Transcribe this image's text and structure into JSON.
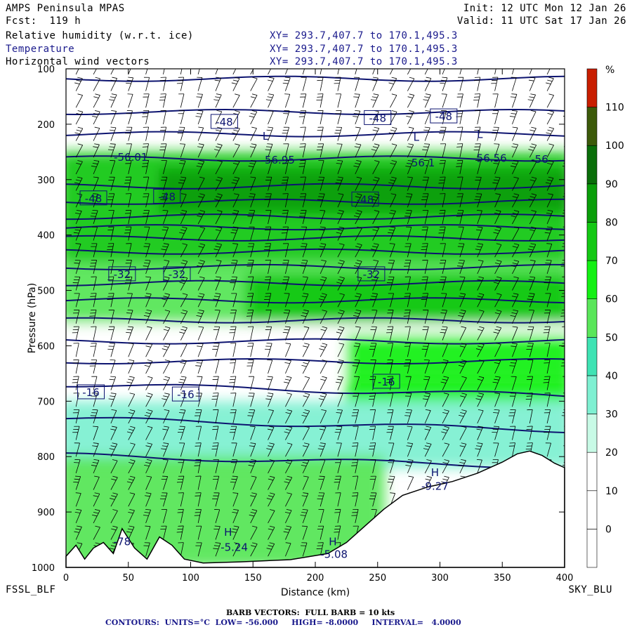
{
  "header": {
    "model": "AMPS Peninsula MPAS",
    "forecast": "Fcst:  119 h",
    "init": "Init: 12 UTC Mon 12 Jan 26",
    "valid": "Valid: 11 UTC Sat 17 Jan 26",
    "field1": "Relative humidity (w.r.t. ice)",
    "field2": "Temperature",
    "field3": "Horizontal wind vectors",
    "xy1": "XY= 293.7,407.7 to 170.1,495.3",
    "xy2": "XY= 293.7,407.7 to 170.1,495.3",
    "xy3": "XY= 293.7,407.7 to 170.1,495.3"
  },
  "footer": {
    "left_station": "FSSL_BLF",
    "right_station": "SKY_BLU",
    "barb_note": "BARB VECTORS:  FULL BARB = 10 kts",
    "contours": "CONTOURS:  UNITS=°C  LOW= -56.000     HIGH= -8.0000     INTERVAL=   4.0000"
  },
  "colors": {
    "contour": "#0d1470",
    "barb": "#000000",
    "terrain": "#ffffff"
  },
  "chart_data": {
    "type": "heatmap",
    "xlabel": "Distance (km)",
    "ylabel": "Pressure (hPa)",
    "xlim": [
      0,
      400
    ],
    "ylim": [
      1000,
      100
    ],
    "x_ticks": [
      0,
      50,
      100,
      150,
      200,
      250,
      300,
      350,
      400
    ],
    "y_ticks": [
      100,
      200,
      300,
      400,
      500,
      600,
      700,
      800,
      900,
      1000
    ],
    "colorbar": {
      "unit": "%",
      "bounds": [
        0,
        10,
        20,
        30,
        40,
        50,
        60,
        70,
        80,
        90,
        100,
        110,
        120
      ],
      "labels": [
        "0",
        "10",
        "20",
        "30",
        "40",
        "50",
        "60",
        "70",
        "80",
        "90",
        "100",
        "110"
      ],
      "colors": [
        "#ffffff",
        "#ffffff",
        "#ffffff",
        "#c8fae6",
        "#7ff0d2",
        "#3fe3b4",
        "#5ae65a",
        "#14f014",
        "#14c814",
        "#0a9e0a",
        "#0a6e0a",
        "#3c5a0a",
        "#c81e00"
      ]
    },
    "rh_layers": [
      {
        "p_top": 250,
        "p_bot": 450,
        "x0": 0,
        "x1": 400,
        "rh": 80
      },
      {
        "p_top": 280,
        "p_bot": 360,
        "x0": 80,
        "x1": 400,
        "rh": 92
      },
      {
        "p_top": 450,
        "p_bot": 560,
        "x0": 0,
        "x1": 400,
        "rh": 65
      },
      {
        "p_top": 470,
        "p_bot": 560,
        "x0": 150,
        "x1": 400,
        "rh": 85
      },
      {
        "p_top": 560,
        "p_bot": 660,
        "x0": 0,
        "x1": 400,
        "rh": 22
      },
      {
        "p_top": 580,
        "p_bot": 700,
        "x0": 230,
        "x1": 400,
        "rh": 75
      },
      {
        "p_top": 700,
        "p_bot": 820,
        "x0": 0,
        "x1": 400,
        "rh": 45
      },
      {
        "p_top": 800,
        "p_bot": 1000,
        "x0": 0,
        "x1": 250,
        "rh": 68
      }
    ],
    "temperature_labels": [
      {
        "text": "-48",
        "x": 127,
        "p": 195
      },
      {
        "text": "-48",
        "x": 250,
        "p": 188
      },
      {
        "text": "-48",
        "x": 303,
        "p": 185
      },
      {
        "text": "-48",
        "x": 22,
        "p": 333
      },
      {
        "text": "-48",
        "x": 81,
        "p": 330
      },
      {
        "text": "-48",
        "x": 240,
        "p": 335
      },
      {
        "text": "-32",
        "x": 45,
        "p": 470
      },
      {
        "text": "-32",
        "x": 89,
        "p": 470
      },
      {
        "text": "-32",
        "x": 245,
        "p": 470
      },
      {
        "text": "-16",
        "x": 20,
        "p": 683
      },
      {
        "text": "-16",
        "x": 96,
        "p": 687
      },
      {
        "text": "-16",
        "x": 257,
        "p": 664
      }
    ],
    "extrema_labels": [
      {
        "text": "-56.01",
        "x": 52,
        "p": 266
      },
      {
        "text": "-56.95",
        "x": 170,
        "p": 271
      },
      {
        "text": "-56.1",
        "x": 285,
        "p": 276
      },
      {
        "text": "-56.56",
        "x": 340,
        "p": 268
      },
      {
        "text": "-56",
        "x": 380,
        "p": 270
      },
      {
        "text": "L",
        "x": 160,
        "p": 228
      },
      {
        "text": "L",
        "x": 281,
        "p": 230
      },
      {
        "text": "L",
        "x": 332,
        "p": 225
      },
      {
        "text": "H",
        "x": 296,
        "p": 835
      },
      {
        "text": "-9.27",
        "x": 296,
        "p": 860
      },
      {
        "text": "H",
        "x": 130,
        "p": 943
      },
      {
        "text": "-5.24",
        "x": 135,
        "p": 970
      },
      {
        "text": "H",
        "x": 214,
        "p": 960
      },
      {
        "text": "-5.08",
        "x": 215,
        "p": 983
      },
      {
        "text": "-78",
        "x": 45,
        "p": 960
      }
    ],
    "isotherms_p": [
      118,
      178,
      218,
      262,
      312,
      340,
      367,
      386,
      406,
      430,
      458,
      487,
      518,
      554,
      592,
      628,
      680,
      742,
      808
    ]
  }
}
